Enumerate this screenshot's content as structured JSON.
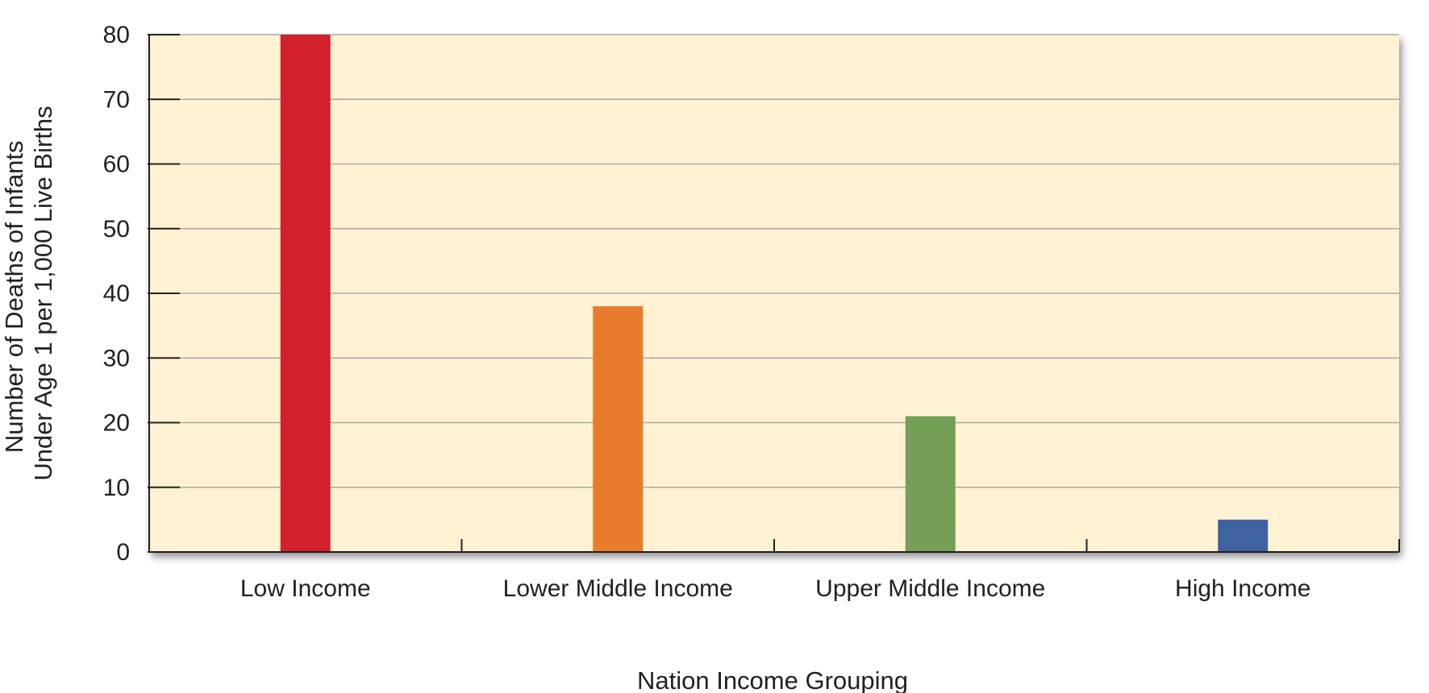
{
  "chart_data": {
    "type": "bar",
    "title": "",
    "xlabel": "Nation Income Grouping",
    "ylabel_lines": [
      "Number of Deaths of Infants",
      "Under Age 1 per 1,000 Live Births"
    ],
    "categories": [
      "Low Income",
      "Lower Middle Income",
      "Upper Middle Income",
      "High Income"
    ],
    "values": [
      80,
      38,
      21,
      5
    ],
    "bar_colors": [
      "#d2202c",
      "#e97c2c",
      "#759e56",
      "#3f63a1"
    ],
    "ylim": [
      0,
      80
    ],
    "yticks": [
      0,
      10,
      20,
      30,
      40,
      50,
      60,
      70,
      80
    ],
    "grid": true,
    "legend": "none",
    "colors": {
      "plot_background": "#fff2d3",
      "grid": "#a8a9ad",
      "axis": "#231f20"
    }
  }
}
